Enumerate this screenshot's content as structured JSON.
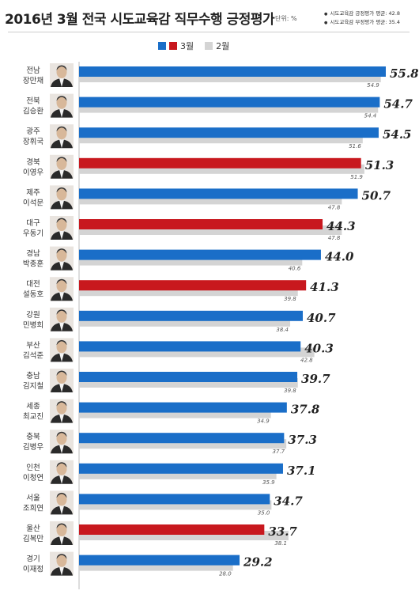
{
  "title": "2016년 3월 전국 시도교육감 직무수행 긍정평가",
  "unit": "단위: %",
  "averages": [
    "시도교육감 긍정평가 평균: 42.8",
    "시도교육감 부정평가 평균: 35.4"
  ],
  "colors": {
    "march_blue": "#1a6ec8",
    "march_red": "#c8181e",
    "feb_gray": "#d4d4d4"
  },
  "chart_data": {
    "type": "bar",
    "orientation": "horizontal",
    "legend": [
      "3월",
      "2월"
    ],
    "series": [
      {
        "name": "3월",
        "values": [
          55.8,
          54.7,
          54.5,
          51.3,
          50.7,
          44.3,
          44.0,
          41.3,
          40.7,
          40.3,
          39.7,
          37.8,
          37.3,
          37.1,
          34.7,
          33.7,
          29.2
        ]
      },
      {
        "name": "2월",
        "values": [
          54.9,
          54.4,
          51.6,
          51.9,
          47.8,
          47.8,
          40.6,
          39.8,
          38.4,
          42.8,
          39.8,
          34.9,
          37.7,
          35.9,
          35.0,
          38.1,
          28.0
        ]
      }
    ],
    "categories": [
      {
        "region": "전남",
        "name": "장만채",
        "highlight": false
      },
      {
        "region": "전북",
        "name": "김승환",
        "highlight": false
      },
      {
        "region": "광주",
        "name": "장휘국",
        "highlight": false
      },
      {
        "region": "경북",
        "name": "이영우",
        "highlight": true
      },
      {
        "region": "제주",
        "name": "이석문",
        "highlight": false
      },
      {
        "region": "대구",
        "name": "우동기",
        "highlight": true
      },
      {
        "region": "경남",
        "name": "박종훈",
        "highlight": false
      },
      {
        "region": "대전",
        "name": "설동호",
        "highlight": true
      },
      {
        "region": "강원",
        "name": "민병희",
        "highlight": false
      },
      {
        "region": "부산",
        "name": "김석준",
        "highlight": false
      },
      {
        "region": "충남",
        "name": "김지철",
        "highlight": false
      },
      {
        "region": "세종",
        "name": "최교진",
        "highlight": false
      },
      {
        "region": "충북",
        "name": "김병우",
        "highlight": false
      },
      {
        "region": "인천",
        "name": "이청연",
        "highlight": false
      },
      {
        "region": "서울",
        "name": "조희연",
        "highlight": false
      },
      {
        "region": "울산",
        "name": "김복만",
        "highlight": true
      },
      {
        "region": "경기",
        "name": "이재정",
        "highlight": false
      }
    ],
    "xlim": [
      0,
      60
    ]
  }
}
